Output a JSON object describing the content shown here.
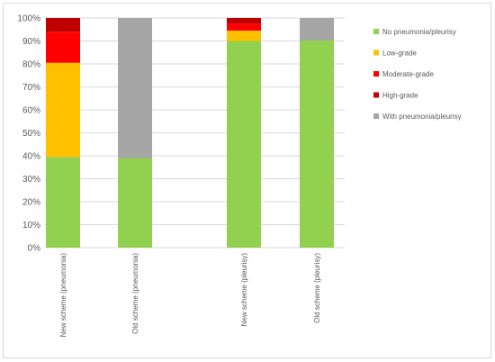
{
  "chart_data": {
    "type": "bar",
    "stacked": true,
    "categories": [
      "New scheme (pneumonia)",
      "Old scheme (pneumonia)",
      "New scheme (pleurisy)",
      "Old scheme (pleurisy)"
    ],
    "series": [
      {
        "name": "No pneumonia/pleurisy",
        "color": "#92d050",
        "values": [
          39.5,
          39,
          90,
          90.2
        ]
      },
      {
        "name": "Low-grade",
        "color": "#ffc000",
        "values": [
          41,
          0,
          4.5,
          0
        ]
      },
      {
        "name": "Moderate-grade",
        "color": "#ff0000",
        "values": [
          13.5,
          0,
          3,
          0
        ]
      },
      {
        "name": "High-grade",
        "color": "#c00000",
        "values": [
          6,
          0,
          2.5,
          0
        ]
      },
      {
        "name": "With pneumonia/pleurisy",
        "color": "#a6a6a6",
        "values": [
          0,
          61,
          0,
          9.8
        ]
      }
    ],
    "ylim": [
      0,
      100
    ],
    "yticks": [
      "0%",
      "10%",
      "20%",
      "30%",
      "40%",
      "50%",
      "60%",
      "70%",
      "80%",
      "90%",
      "100%"
    ],
    "grid": true,
    "legend_position": "right",
    "gridline_color": "#d9d9d9"
  }
}
